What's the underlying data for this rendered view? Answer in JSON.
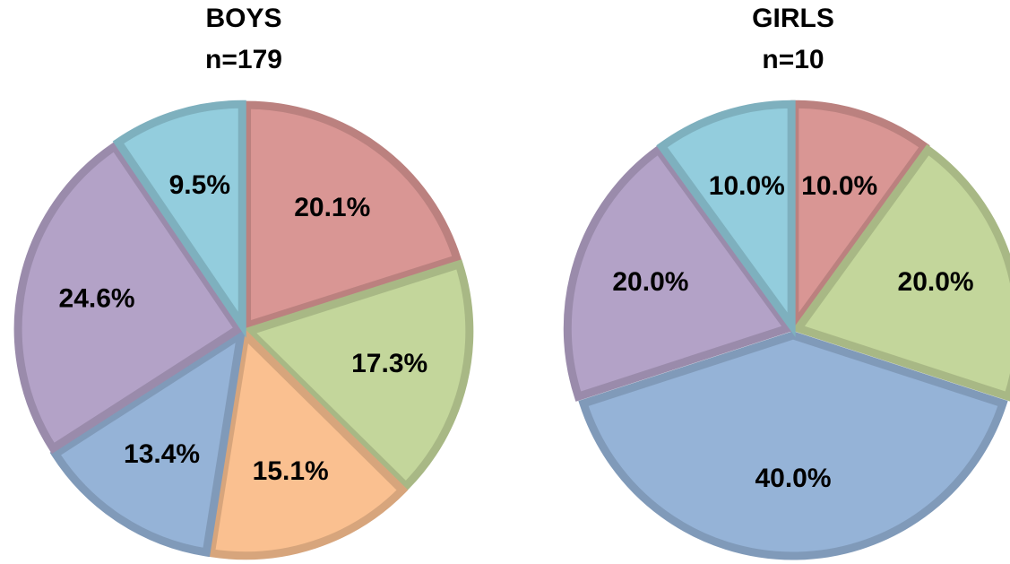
{
  "chart_data": [
    {
      "type": "pie",
      "title": "BOYS",
      "subtitle": "n=179",
      "values": [
        20.1,
        17.3,
        15.1,
        13.4,
        24.6,
        9.5
      ],
      "value_labels": [
        "20.1%",
        "17.3%",
        "15.1%",
        "13.4%",
        "24.6%",
        "9.5%"
      ],
      "colors": [
        "#d99694",
        "#c3d69b",
        "#fac090",
        "#95b3d7",
        "#b3a2c7",
        "#93cddd"
      ]
    },
    {
      "type": "pie",
      "title": "GIRLS",
      "subtitle": "n=10",
      "values": [
        10,
        20,
        40,
        20,
        10
      ],
      "value_labels": [
        "10.0%",
        "20.0%",
        "40.0%",
        "20.0%",
        "10.0%"
      ],
      "colors": [
        "#d99694",
        "#c3d69b",
        "#95b3d7",
        "#b3a2c7",
        "#93cddd"
      ]
    }
  ]
}
